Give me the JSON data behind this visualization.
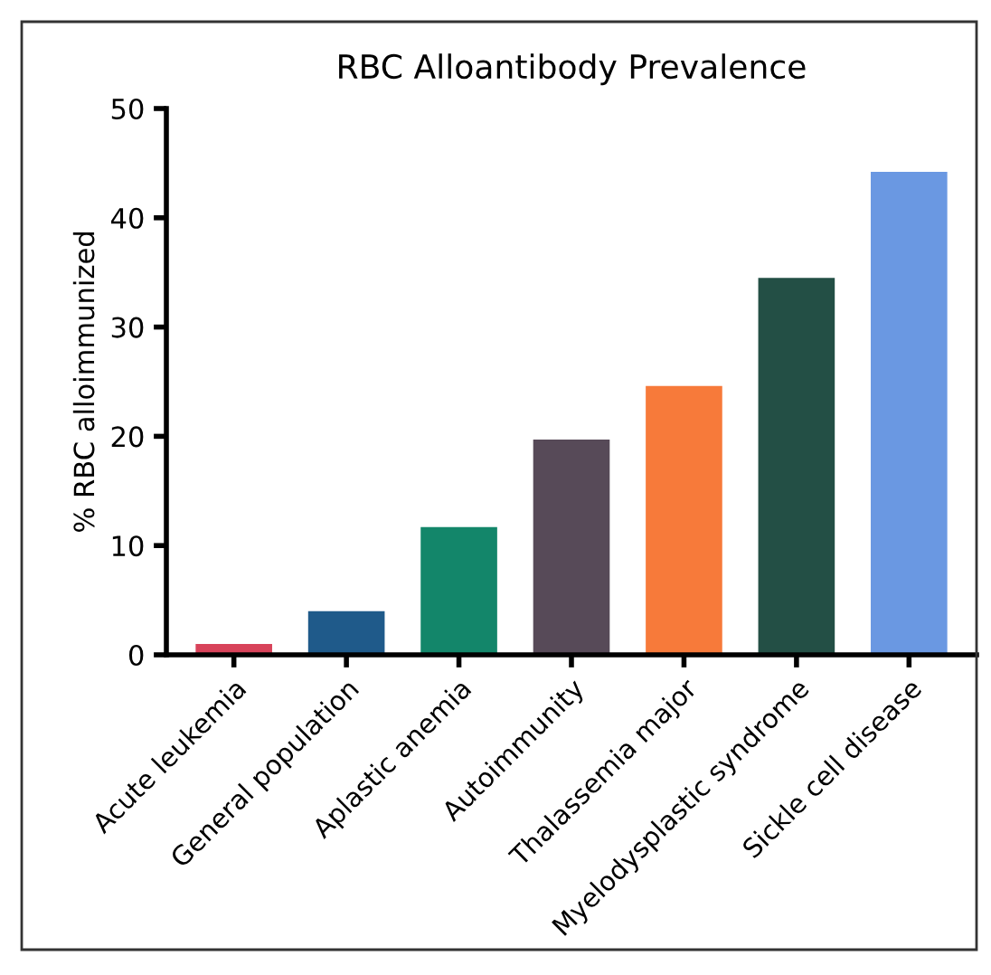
{
  "chart_data": {
    "type": "bar",
    "title": "RBC Alloantibody Prevalence",
    "ylabel": "% RBC alloimmunized",
    "categories": [
      "Acute leukemia",
      "General population",
      "Aplastic anemia",
      "Autoimmunity",
      "Thalassemia major",
      "Myelodysplastic syndrome",
      "Sickle cell disease"
    ],
    "values": [
      1,
      4,
      11.7,
      19.7,
      24.6,
      34.5,
      44.2
    ],
    "colors": [
      "#d8435a",
      "#1f5a8a",
      "#13866a",
      "#574a58",
      "#f77a3a",
      "#234f45",
      "#6a98e2"
    ],
    "ylim": [
      0,
      50
    ],
    "yticks": [
      0,
      10,
      20,
      30,
      40,
      50
    ],
    "grid": false,
    "legend": false
  }
}
